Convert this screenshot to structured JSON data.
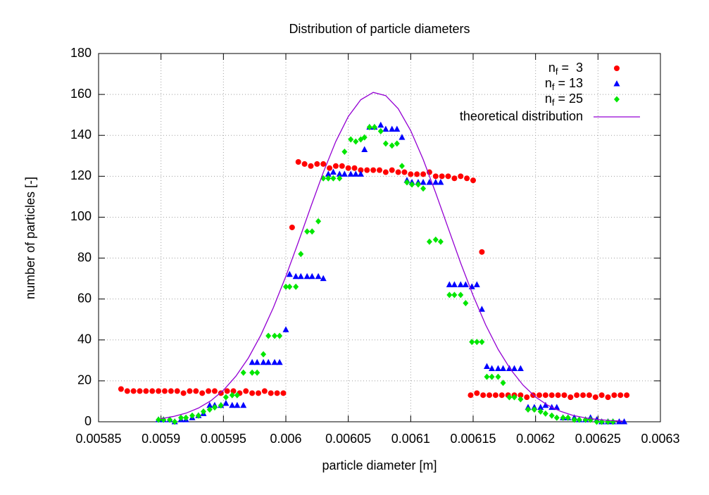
{
  "chart_data": {
    "type": "scatter",
    "title": "Distribution of particle diameters",
    "x_label": "particle diameter [m]",
    "y_label": "number of particles [-]",
    "xlim": [
      0.00585,
      0.0063
    ],
    "xticks": [
      0.00585,
      0.0059,
      0.00595,
      0.006,
      0.00605,
      0.0061,
      0.00615,
      0.0062,
      0.00625,
      0.0063
    ],
    "ylim": [
      0,
      180
    ],
    "yticks": [
      0,
      20,
      40,
      60,
      80,
      100,
      120,
      140,
      160,
      180
    ],
    "grid": true,
    "legend": "top-right",
    "series": [
      {
        "name": "nf =  3",
        "style": "points",
        "marker": "circle",
        "color": "#ff0000",
        "x": [
          0.005868,
          0.005873,
          0.005878,
          0.005883,
          0.005888,
          0.005893,
          0.005898,
          0.005903,
          0.005908,
          0.005913,
          0.005918,
          0.005923,
          0.005928,
          0.005933,
          0.005938,
          0.005943,
          0.005948,
          0.005953,
          0.005958,
          0.005963,
          0.005968,
          0.005973,
          0.005978,
          0.005983,
          0.005988,
          0.005993,
          0.005998,
          0.006005,
          0.00601,
          0.006015,
          0.00602,
          0.006025,
          0.00603,
          0.006035,
          0.00604,
          0.006045,
          0.00605,
          0.006055,
          0.00606,
          0.006065,
          0.00607,
          0.006075,
          0.00608,
          0.006085,
          0.00609,
          0.006095,
          0.0061,
          0.006105,
          0.00611,
          0.006115,
          0.00612,
          0.006125,
          0.00613,
          0.006135,
          0.00614,
          0.006145,
          0.00615,
          0.006157,
          0.006148,
          0.006153,
          0.006158,
          0.006163,
          0.006168,
          0.006173,
          0.006178,
          0.006183,
          0.006188,
          0.006193,
          0.006198,
          0.006203,
          0.006208,
          0.006213,
          0.006218,
          0.006223,
          0.006228,
          0.006233,
          0.006238,
          0.006243,
          0.006248,
          0.006253,
          0.006258,
          0.006263,
          0.006268,
          0.006273
        ],
        "values": [
          16,
          15,
          15,
          15,
          15,
          15,
          15,
          15,
          15,
          15,
          14,
          15,
          15,
          14,
          15,
          15,
          14,
          15,
          15,
          14,
          15,
          14,
          14,
          15,
          14,
          14,
          14,
          95,
          127,
          126,
          125,
          126,
          126,
          124,
          125,
          125,
          124,
          124,
          123,
          123,
          123,
          123,
          122,
          123,
          122,
          122,
          121,
          121,
          121,
          122,
          120,
          120,
          120,
          119,
          120,
          119,
          118,
          83,
          13,
          14,
          13,
          13,
          13,
          13,
          13,
          13,
          13,
          12,
          13,
          13,
          13,
          13,
          13,
          13,
          12,
          13,
          13,
          13,
          12,
          13,
          12,
          13,
          13,
          13
        ]
      },
      {
        "name": "nf = 13",
        "style": "points",
        "marker": "triangle",
        "color": "#0000ff",
        "x": [
          0.005898,
          0.005902,
          0.005907,
          0.005911,
          0.005916,
          0.00592,
          0.005925,
          0.00593,
          0.005934,
          0.005939,
          0.005943,
          0.005948,
          0.005952,
          0.005957,
          0.005961,
          0.005966,
          0.005973,
          0.005977,
          0.005982,
          0.005986,
          0.005991,
          0.005995,
          0.006,
          0.006003,
          0.006008,
          0.006012,
          0.006017,
          0.006021,
          0.006026,
          0.00603,
          0.006034,
          0.006038,
          0.006043,
          0.006047,
          0.006052,
          0.006056,
          0.00606,
          0.006063,
          0.006067,
          0.006071,
          0.006076,
          0.00608,
          0.006085,
          0.006089,
          0.006093,
          0.006097,
          0.006101,
          0.006106,
          0.00611,
          0.006115,
          0.00612,
          0.006124,
          0.006131,
          0.006135,
          0.00614,
          0.006144,
          0.006149,
          0.006153,
          0.006157,
          0.006161,
          0.006165,
          0.00617,
          0.006174,
          0.006179,
          0.006183,
          0.006188,
          0.006194,
          0.006199,
          0.006204,
          0.006208,
          0.006213,
          0.006217,
          0.006222,
          0.006226,
          0.006231,
          0.006235,
          0.00624,
          0.006244,
          0.006249,
          0.006253,
          0.006258,
          0.006262,
          0.006267,
          0.006271
        ],
        "values": [
          1,
          1,
          1,
          0,
          1,
          1,
          2,
          3,
          4,
          8,
          8,
          8,
          9,
          8,
          8,
          8,
          29,
          29,
          29,
          29,
          29,
          29,
          45,
          72,
          71,
          71,
          71,
          71,
          71,
          70,
          121,
          122,
          121,
          121,
          121,
          121,
          121,
          133,
          144,
          144,
          145,
          143,
          143,
          143,
          139,
          118,
          117,
          117,
          117,
          117,
          117,
          117,
          67,
          67,
          67,
          67,
          66,
          67,
          55,
          27,
          26,
          26,
          26,
          26,
          26,
          26,
          7,
          7,
          7,
          8,
          7,
          7,
          2,
          2,
          2,
          1,
          1,
          2,
          1,
          0,
          0,
          0,
          0,
          0
        ]
      },
      {
        "name": "nf = 25",
        "style": "points",
        "marker": "diamond",
        "color": "#00e600",
        "x": [
          0.005898,
          0.005902,
          0.005907,
          0.005911,
          0.005916,
          0.00592,
          0.005925,
          0.00593,
          0.005934,
          0.005939,
          0.005943,
          0.005948,
          0.005952,
          0.005957,
          0.005961,
          0.005966,
          0.005973,
          0.005977,
          0.005982,
          0.005986,
          0.005991,
          0.005995,
          0.006,
          0.006003,
          0.006008,
          0.006012,
          0.006017,
          0.006021,
          0.006026,
          0.00603,
          0.006034,
          0.006038,
          0.006043,
          0.006047,
          0.006052,
          0.006056,
          0.00606,
          0.006063,
          0.006067,
          0.006071,
          0.006076,
          0.00608,
          0.006085,
          0.006089,
          0.006093,
          0.006097,
          0.006101,
          0.006106,
          0.00611,
          0.006115,
          0.00612,
          0.006124,
          0.006131,
          0.006135,
          0.00614,
          0.006144,
          0.006149,
          0.006153,
          0.006157,
          0.006161,
          0.006165,
          0.00617,
          0.006174,
          0.006179,
          0.006183,
          0.006188,
          0.006194,
          0.006199,
          0.006204,
          0.006208,
          0.006213,
          0.006217,
          0.006222,
          0.006226,
          0.006231,
          0.006235,
          0.00624,
          0.006244,
          0.006249,
          0.006253,
          0.006258,
          0.006262
        ],
        "values": [
          1,
          1,
          1,
          0,
          2,
          2,
          3,
          3,
          5,
          6,
          7,
          8,
          12,
          13,
          13,
          24,
          24,
          24,
          33,
          42,
          42,
          42,
          66,
          66,
          66,
          82,
          93,
          93,
          98,
          119,
          119,
          119,
          119,
          132,
          138,
          137,
          138,
          139,
          144,
          144,
          142,
          136,
          135,
          136,
          125,
          117,
          116,
          116,
          114,
          88,
          89,
          88,
          62,
          62,
          62,
          58,
          39,
          39,
          39,
          22,
          22,
          22,
          19,
          12,
          12,
          11,
          6,
          6,
          5,
          4,
          3,
          2,
          2,
          2,
          1,
          1,
          1,
          1,
          0,
          0,
          0,
          0
        ]
      },
      {
        "name": "theoretical distribution",
        "style": "line",
        "color": "#9400d3",
        "x": [
          0.0059,
          0.00591,
          0.00592,
          0.00593,
          0.00594,
          0.00595,
          0.00596,
          0.00597,
          0.00598,
          0.00599,
          0.006,
          0.00601,
          0.00602,
          0.00603,
          0.00604,
          0.00605,
          0.00606,
          0.00607,
          0.00608,
          0.00609,
          0.0061,
          0.00611,
          0.00612,
          0.00613,
          0.00614,
          0.00615,
          0.00616,
          0.00617,
          0.00618,
          0.00619,
          0.0062,
          0.00621,
          0.00622,
          0.00623,
          0.00624,
          0.00625,
          0.00626,
          0.00627
        ],
        "values": [
          1.5,
          2.6,
          4.2,
          6.7,
          10.3,
          15.4,
          22.3,
          31.2,
          42.4,
          55.8,
          71.1,
          87.8,
          105.1,
          121.9,
          137,
          149.2,
          157.4,
          161,
          159.4,
          153,
          142.3,
          128.2,
          111.9,
          94.7,
          77.6,
          61.7,
          47.4,
          35.4,
          25.6,
          17.9,
          12.1,
          8,
          5.1,
          3.1,
          1.9,
          1.1,
          0.6,
          0.3
        ]
      }
    ]
  }
}
